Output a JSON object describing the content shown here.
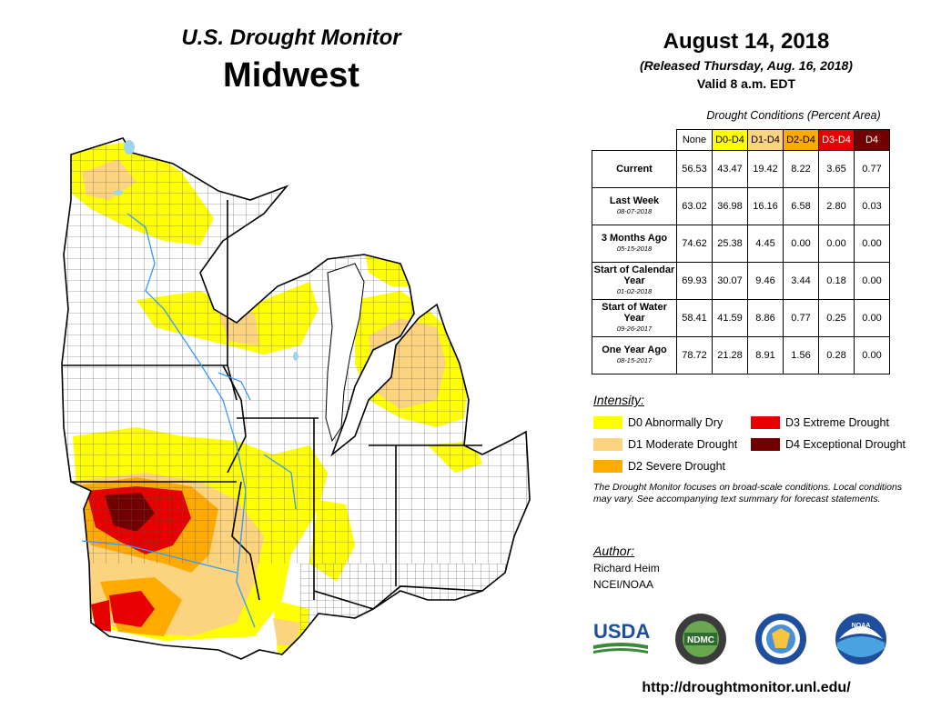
{
  "header": {
    "title_line1": "U.S. Drought Monitor",
    "title_line2": "Midwest",
    "date": "August 14, 2018",
    "released": "(Released Thursday, Aug. 16, 2018)",
    "valid": "Valid 8 a.m. EDT"
  },
  "table": {
    "caption": "Drought Conditions (Percent Area)",
    "columns": [
      {
        "label": "None",
        "color": "#ffffff"
      },
      {
        "label": "D0-D4",
        "color": "#ffff00"
      },
      {
        "label": "D1-D4",
        "color": "#fcd37f"
      },
      {
        "label": "D2-D4",
        "color": "#ffaa00"
      },
      {
        "label": "D3-D4",
        "color": "#e60000"
      },
      {
        "label": "D4",
        "color": "#730000"
      }
    ],
    "rows": [
      {
        "label": "Current",
        "date": "",
        "values": [
          "56.53",
          "43.47",
          "19.42",
          "8.22",
          "3.65",
          "0.77"
        ]
      },
      {
        "label": "Last Week",
        "date": "08-07-2018",
        "values": [
          "63.02",
          "36.98",
          "16.16",
          "6.58",
          "2.80",
          "0.03"
        ]
      },
      {
        "label": "3 Months Ago",
        "date": "05-15-2018",
        "values": [
          "74.62",
          "25.38",
          "4.45",
          "0.00",
          "0.00",
          "0.00"
        ]
      },
      {
        "label": "Start of Calendar Year",
        "date": "01-02-2018",
        "values": [
          "69.93",
          "30.07",
          "9.46",
          "3.44",
          "0.18",
          "0.00"
        ]
      },
      {
        "label": "Start of Water Year",
        "date": "09-26-2017",
        "values": [
          "58.41",
          "41.59",
          "8.86",
          "0.77",
          "0.25",
          "0.00"
        ]
      },
      {
        "label": "One Year Ago",
        "date": "08-15-2017",
        "values": [
          "78.72",
          "21.28",
          "8.91",
          "1.56",
          "0.28",
          "0.00"
        ]
      }
    ]
  },
  "legend": {
    "heading": "Intensity:",
    "items": [
      {
        "label": "D0 Abnormally Dry",
        "color": "#ffff00"
      },
      {
        "label": "D1 Moderate Drought",
        "color": "#fcd37f"
      },
      {
        "label": "D2 Severe Drought",
        "color": "#ffaa00"
      },
      {
        "label": "D3 Extreme Drought",
        "color": "#e60000"
      },
      {
        "label": "D4 Exceptional Drought",
        "color": "#730000"
      }
    ]
  },
  "note": "The Drought Monitor focuses on broad-scale conditions. Local conditions may vary. See accompanying text summary for forecast statements.",
  "author": {
    "heading": "Author:",
    "name": "Richard Heim",
    "org": "NCEI/NOAA"
  },
  "logos": {
    "usda": "USDA",
    "ndmc": "NDMC",
    "noaa": "NOAA"
  },
  "url": "http://droughtmonitor.unl.edu/",
  "colors": {
    "water": "#9fd4f0",
    "river": "#3399ff",
    "border": "#000000"
  }
}
